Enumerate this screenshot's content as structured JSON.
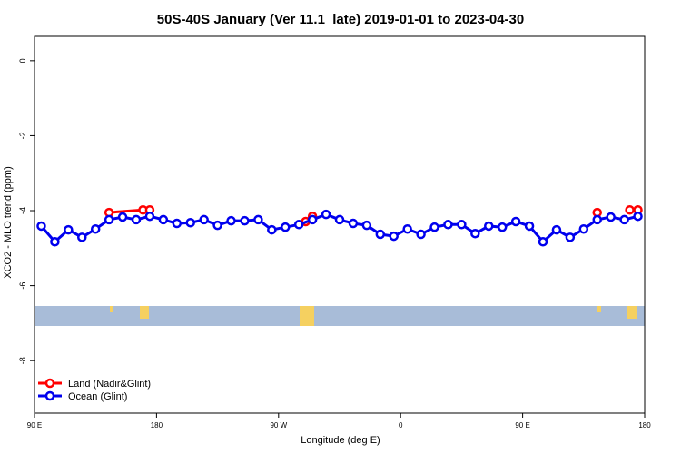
{
  "chart_data": {
    "type": "line",
    "title": "50S-40S January (Ver 11.1_late)   2019-01-01 to 2023-04-30",
    "x_label": "Longitude (deg E)",
    "y_label": "XCO2 - MLO trend (ppm)",
    "xlim": [
      90,
      540
    ],
    "ylim": [
      -9.4,
      0.65
    ],
    "xticks": [
      {
        "value": 90,
        "label": "90 E"
      },
      {
        "value": 180,
        "label": "180"
      },
      {
        "value": 270,
        "label": "90 W"
      },
      {
        "value": 360,
        "label": "0"
      },
      {
        "value": 450,
        "label": "90 E"
      },
      {
        "value": 540,
        "label": "180"
      }
    ],
    "yticks": [
      0,
      -2,
      -4,
      -6,
      -8
    ],
    "legend": "bottom-left",
    "series": [
      {
        "name": "Land (Nadir&Glint)",
        "color": "#ff0000",
        "x": [
          145,
          170,
          175,
          230,
          290,
          295,
          400,
          505,
          515,
          529,
          535
        ],
        "values": [
          -4.05,
          -3.98,
          -3.98,
          null,
          -4.29,
          -4.15,
          null,
          -4.05,
          null,
          -3.98,
          -3.98
        ]
      },
      {
        "name": "Ocean (Glint)",
        "color": "#0000ee",
        "x": [
          95,
          105,
          115,
          125,
          135,
          145,
          155,
          165,
          175,
          185,
          195,
          205,
          215,
          225,
          235,
          245,
          255,
          265,
          275,
          285,
          295,
          305,
          315,
          325,
          335,
          345,
          355,
          365,
          375,
          385,
          395,
          405,
          415,
          425,
          435,
          445,
          455,
          465,
          475,
          485,
          495,
          505,
          515,
          525,
          535
        ],
        "values": [
          -4.41,
          -4.83,
          -4.51,
          -4.71,
          -4.49,
          -4.24,
          -4.17,
          -4.24,
          -4.15,
          -4.24,
          -4.34,
          -4.32,
          -4.24,
          -4.39,
          -4.27,
          -4.27,
          -4.24,
          -4.51,
          -4.44,
          -4.37,
          -4.24,
          -4.1,
          -4.24,
          -4.34,
          -4.39,
          -4.63,
          -4.68,
          -4.49,
          -4.63,
          -4.44,
          -4.37,
          -4.37,
          -4.61,
          -4.41,
          -4.44,
          -4.29,
          -4.41,
          -4.83,
          -4.51,
          -4.71,
          -4.49,
          -4.24,
          -4.17,
          -4.24,
          -4.15
        ]
      }
    ]
  }
}
